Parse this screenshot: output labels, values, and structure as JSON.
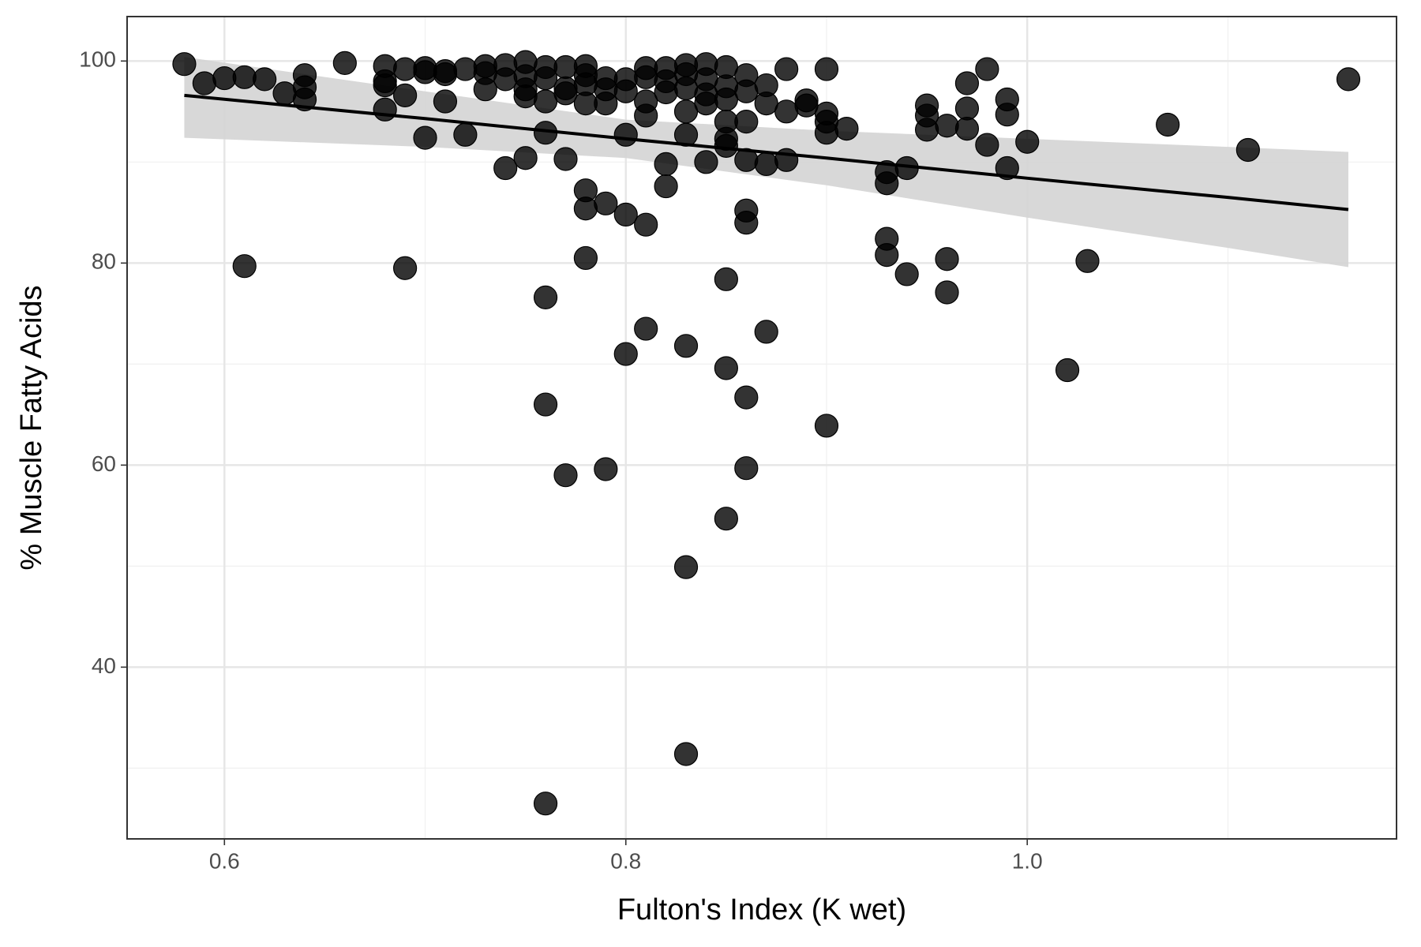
{
  "chart_data": {
    "type": "scatter",
    "x_label": "Fulton's Index (K wet)",
    "y_label": "% Muscle Fatty Acids",
    "xlim": [
      0.5515,
      1.184
    ],
    "ylim": [
      23.0,
      104.4
    ],
    "xticks": [
      0.6,
      0.8,
      {
        "value": 1,
        "label": "1.0"
      }
    ],
    "yticks": [
      40,
      60,
      80,
      100
    ],
    "x_minor_grid": [
      0.7,
      0.9,
      1.1
    ],
    "y_minor_grid": [
      30,
      50,
      70,
      90
    ],
    "grid": true,
    "color": "#000000",
    "x": [
      0.58,
      0.59,
      0.6,
      0.61,
      0.61,
      0.62,
      0.63,
      0.64,
      0.64,
      0.64,
      0.66,
      0.68,
      0.68,
      0.68,
      0.68,
      0.69,
      0.69,
      0.69,
      0.7,
      0.7,
      0.7,
      0.71,
      0.71,
      0.71,
      0.72,
      0.72,
      0.73,
      0.73,
      0.73,
      0.74,
      0.74,
      0.74,
      0.75,
      0.75,
      0.75,
      0.75,
      0.75,
      0.76,
      0.76,
      0.76,
      0.76,
      0.76,
      0.76,
      0.76,
      0.77,
      0.77,
      0.77,
      0.77,
      0.77,
      0.78,
      0.78,
      0.78,
      0.78,
      0.78,
      0.78,
      0.78,
      0.79,
      0.79,
      0.79,
      0.79,
      0.79,
      0.8,
      0.8,
      0.8,
      0.8,
      0.8,
      0.81,
      0.81,
      0.81,
      0.81,
      0.81,
      0.81,
      0.82,
      0.82,
      0.82,
      0.82,
      0.82,
      0.83,
      0.83,
      0.83,
      0.83,
      0.83,
      0.83,
      0.83,
      0.83,
      0.84,
      0.84,
      0.84,
      0.84,
      0.84,
      0.85,
      0.85,
      0.85,
      0.85,
      0.85,
      0.85,
      0.85,
      0.85,
      0.85,
      0.86,
      0.86,
      0.86,
      0.86,
      0.86,
      0.86,
      0.86,
      0.86,
      0.87,
      0.87,
      0.87,
      0.87,
      0.88,
      0.88,
      0.88,
      0.89,
      0.89,
      0.9,
      0.9,
      0.9,
      0.9,
      0.9,
      0.91,
      0.93,
      0.93,
      0.93,
      0.93,
      0.94,
      0.94,
      0.95,
      0.95,
      0.95,
      0.96,
      0.96,
      0.96,
      0.97,
      0.97,
      0.97,
      0.98,
      0.98,
      0.99,
      0.99,
      0.99,
      1.0,
      1.02,
      1.03,
      1.07,
      1.11,
      1.16
    ],
    "values": [
      99.7,
      97.8,
      98.3,
      98.4,
      79.7,
      98.2,
      96.8,
      98.6,
      97.4,
      96.2,
      99.8,
      99.5,
      98.0,
      97.6,
      95.2,
      99.2,
      96.6,
      79.5,
      99.3,
      98.9,
      92.4,
      99.0,
      98.7,
      96.0,
      99.2,
      92.7,
      99.5,
      98.8,
      97.2,
      99.6,
      98.2,
      89.4,
      99.9,
      98.5,
      97.2,
      96.5,
      90.4,
      99.4,
      98.3,
      96.0,
      92.9,
      76.6,
      66.0,
      26.5,
      99.4,
      97.3,
      96.8,
      90.3,
      59.0,
      99.5,
      98.6,
      97.7,
      95.8,
      87.2,
      85.4,
      80.5,
      98.3,
      97.2,
      95.8,
      85.9,
      59.6,
      98.2,
      97.0,
      92.7,
      84.8,
      71.0,
      99.3,
      98.4,
      96.0,
      94.6,
      83.8,
      73.5,
      99.3,
      98.0,
      96.9,
      89.8,
      87.6,
      99.6,
      98.7,
      97.3,
      95.0,
      92.7,
      71.8,
      49.9,
      31.4,
      99.7,
      98.2,
      96.7,
      95.8,
      90.0,
      99.4,
      97.5,
      96.2,
      94.0,
      92.3,
      91.6,
      78.4,
      69.6,
      54.7,
      98.6,
      97.0,
      94.0,
      90.2,
      85.2,
      84.0,
      66.7,
      59.7,
      97.6,
      95.8,
      89.8,
      73.2,
      99.2,
      95.0,
      90.2,
      96.1,
      95.6,
      99.2,
      94.8,
      94.0,
      92.9,
      63.9,
      93.3,
      89.0,
      87.9,
      82.4,
      80.8,
      89.4,
      78.9,
      95.6,
      94.6,
      93.2,
      93.6,
      80.4,
      77.1,
      97.8,
      95.3,
      93.3,
      99.2,
      91.7,
      96.2,
      94.7,
      89.4,
      92.0,
      69.4,
      80.2,
      93.7,
      91.2,
      98.2
    ],
    "fit": {
      "color": "#000000",
      "band_color": "#d4d4d4",
      "x": [
        0.58,
        0.7,
        0.8,
        0.9,
        1.0,
        1.1,
        1.16
      ],
      "values": [
        96.6,
        94.3,
        92.3,
        90.4,
        88.4,
        86.5,
        85.3
      ],
      "upper": [
        100.4,
        97.0,
        94.2,
        93.1,
        92.3,
        91.5,
        91.0
      ],
      "lower": [
        92.4,
        91.5,
        90.4,
        87.7,
        84.5,
        81.5,
        79.6
      ]
    }
  }
}
